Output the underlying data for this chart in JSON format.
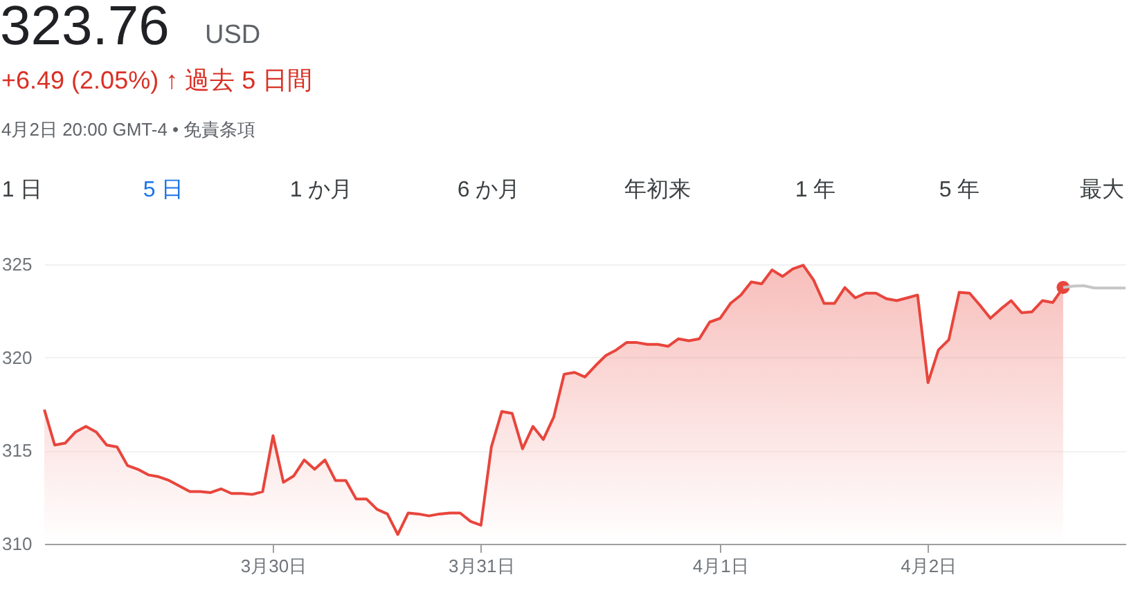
{
  "chart_data": {
    "type": "area",
    "title": "323.76",
    "annotations": [
      "USD",
      "+6.49 (2.05%) ↑ 過去 5 日間",
      "4月2日 20:00 GMT-4 • 免責条項",
      "1 日",
      "5 日",
      "1 か月",
      "6 か月",
      "年初来",
      "1 年",
      "5 年",
      "最大"
    ],
    "categories": [
      null,
      null,
      null,
      null,
      null,
      null,
      null,
      null,
      null,
      null,
      null,
      null,
      null,
      null,
      null,
      null,
      null,
      null,
      null,
      null,
      null,
      null,
      "3月30日",
      null,
      null,
      null,
      null,
      null,
      null,
      null,
      null,
      null,
      null,
      null,
      null,
      null,
      null,
      null,
      null,
      null,
      null,
      null,
      "3月31日",
      null,
      null,
      null,
      null,
      null,
      null,
      null,
      null,
      null,
      null,
      null,
      null,
      null,
      null,
      null,
      null,
      null,
      null,
      null,
      null,
      null,
      null,
      "4月1日",
      null,
      null,
      null,
      null,
      null,
      null,
      null,
      null,
      null,
      null,
      null,
      null,
      null,
      null,
      null,
      null,
      null,
      null,
      null,
      "4月2日",
      null,
      null,
      null,
      null,
      null,
      null,
      null,
      null,
      null,
      null,
      null,
      null,
      null,
      null,
      null,
      null,
      null,
      null,
      null
    ],
    "ylim": [
      310,
      325
    ],
    "yticks": [
      310,
      315,
      320,
      325
    ],
    "grid": "y",
    "line_style": "solid",
    "series": [
      {
        "color": "#e8453c",
        "values": [
          317.2,
          315.3,
          315.4,
          316.0,
          316.3,
          316.0,
          315.3,
          315.2,
          314.2,
          314.0,
          313.7,
          313.6,
          313.4,
          313.1,
          312.8,
          312.8,
          312.75,
          312.95,
          312.7,
          312.7,
          312.65,
          312.8,
          315.8,
          313.3,
          313.65,
          314.5,
          314.0,
          314.5,
          313.4,
          313.4,
          312.4,
          312.4,
          311.85,
          311.6,
          310.5,
          311.65,
          311.6,
          311.5,
          311.6,
          311.65,
          311.65,
          311.2,
          311.0,
          315.2,
          317.1,
          317.0,
          315.1,
          316.3,
          315.6,
          316.8,
          319.1,
          319.2,
          318.95,
          319.55,
          320.1,
          320.4,
          320.8,
          320.8,
          320.7,
          320.7,
          320.6,
          321.0,
          320.9,
          321.0,
          321.9,
          322.1,
          322.9,
          323.35,
          324.05,
          323.95,
          324.7,
          324.35,
          324.75,
          324.95,
          324.15,
          322.9,
          322.9,
          323.75,
          323.2,
          323.45,
          323.45,
          323.15,
          323.05,
          323.2,
          323.35,
          318.65,
          320.4,
          320.95,
          323.5,
          323.45,
          322.8,
          322.1,
          322.6,
          323.05,
          322.4,
          322.45,
          323.05,
          322.95,
          323.76,
          null,
          null,
          null,
          null,
          null,
          null
        ]
      },
      {
        "type": "scatter",
        "color": "#e8453c",
        "marker": "circle",
        "values": [
          null,
          null,
          null,
          null,
          null,
          null,
          null,
          null,
          null,
          null,
          null,
          null,
          null,
          null,
          null,
          null,
          null,
          null,
          null,
          null,
          null,
          null,
          null,
          null,
          null,
          null,
          null,
          null,
          null,
          null,
          null,
          null,
          null,
          null,
          null,
          null,
          null,
          null,
          null,
          null,
          null,
          null,
          null,
          null,
          null,
          null,
          null,
          null,
          null,
          null,
          null,
          null,
          null,
          null,
          null,
          null,
          null,
          null,
          null,
          null,
          null,
          null,
          null,
          null,
          null,
          null,
          null,
          null,
          null,
          null,
          null,
          null,
          null,
          null,
          null,
          null,
          null,
          null,
          null,
          null,
          null,
          null,
          null,
          null,
          null,
          null,
          null,
          null,
          null,
          null,
          null,
          null,
          null,
          null,
          null,
          null,
          null,
          null,
          323.76,
          null,
          null,
          null,
          null,
          null,
          null
        ]
      },
      {
        "type": "line",
        "color": "#c6c6c6",
        "values": [
          null,
          null,
          null,
          null,
          null,
          null,
          null,
          null,
          null,
          null,
          null,
          null,
          null,
          null,
          null,
          null,
          null,
          null,
          null,
          null,
          null,
          null,
          null,
          null,
          null,
          null,
          null,
          null,
          null,
          null,
          null,
          null,
          null,
          null,
          null,
          null,
          null,
          null,
          null,
          null,
          null,
          null,
          null,
          null,
          null,
          null,
          null,
          null,
          null,
          null,
          null,
          null,
          null,
          null,
          null,
          null,
          null,
          null,
          null,
          null,
          null,
          null,
          null,
          null,
          null,
          null,
          null,
          null,
          null,
          null,
          null,
          null,
          null,
          null,
          null,
          null,
          null,
          null,
          null,
          null,
          null,
          null,
          null,
          null,
          null,
          null,
          null,
          null,
          null,
          null,
          null,
          null,
          null,
          null,
          null,
          null,
          null,
          null,
          323.76,
          323.83,
          323.85,
          323.73,
          323.73,
          323.73,
          323.73
        ]
      }
    ]
  }
}
